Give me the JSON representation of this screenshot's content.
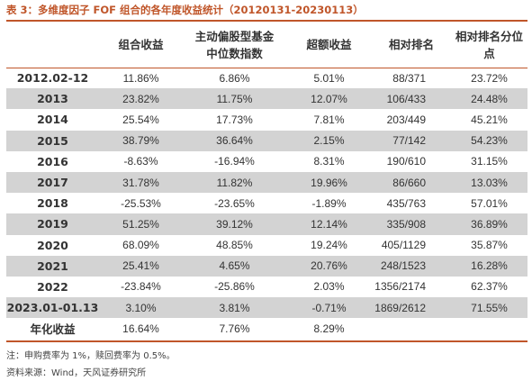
{
  "title": "表 3：多维度因子 FOF 组合的各年度收益统计（20120131-20230113）",
  "columns": [
    "",
    "组合收益",
    "主动偏股型基金中位数指数",
    "超额收益",
    "相对排名",
    "相对排名分位点"
  ],
  "rows": [
    [
      "2012.02-12",
      "11.86%",
      "6.86%",
      "5.01%",
      "88/371",
      "23.72%"
    ],
    [
      "2013",
      "23.82%",
      "11.75%",
      "12.07%",
      "106/433",
      "24.48%"
    ],
    [
      "2014",
      "25.54%",
      "17.73%",
      "7.81%",
      "203/449",
      "45.21%"
    ],
    [
      "2015",
      "38.79%",
      "36.64%",
      "2.15%",
      "77/142",
      "54.23%"
    ],
    [
      "2016",
      "-8.63%",
      "-16.94%",
      "8.31%",
      "190/610",
      "31.15%"
    ],
    [
      "2017",
      "31.78%",
      "11.82%",
      "19.96%",
      "86/660",
      "13.03%"
    ],
    [
      "2018",
      "-25.53%",
      "-23.65%",
      "-1.89%",
      "435/763",
      "57.01%"
    ],
    [
      "2019",
      "51.25%",
      "39.12%",
      "12.14%",
      "335/908",
      "36.89%"
    ],
    [
      "2020",
      "68.09%",
      "48.85%",
      "19.24%",
      "405/1129",
      "35.87%"
    ],
    [
      "2021",
      "25.41%",
      "4.65%",
      "20.76%",
      "248/1523",
      "16.28%"
    ],
    [
      "2022",
      "-23.84%",
      "-25.86%",
      "2.03%",
      "1356/2174",
      "62.37%"
    ],
    [
      "2023.01-01.13",
      "3.10%",
      "3.81%",
      "-0.71%",
      "1869/2612",
      "71.55%"
    ],
    [
      "年化收益",
      "16.64%",
      "7.76%",
      "8.29%",
      "",
      ""
    ]
  ],
  "note": "注：申购费率为 1%，赎回费率为 0.5%。",
  "source": "资料来源：Wind，天风证券研究所",
  "colors": {
    "accent": "#c0562a",
    "stripe": "#d3d3d3"
  }
}
